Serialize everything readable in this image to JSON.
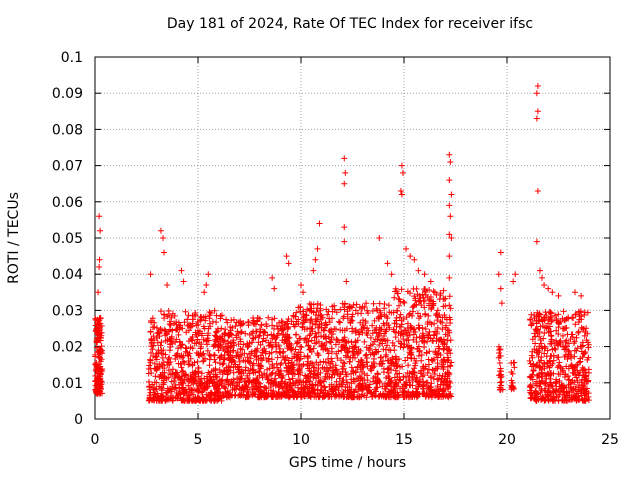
{
  "chart_data": {
    "type": "scatter",
    "title": "Day 181 of 2024, Rate Of TEC Index for receiver ifsc",
    "xlabel": "GPS time / hours",
    "ylabel": "ROTI / TECUs",
    "xlim": [
      0,
      25
    ],
    "ylim": [
      0,
      0.1
    ],
    "xticks": [
      "0",
      "5",
      "10",
      "15",
      "20",
      "25"
    ],
    "yticks": [
      "0",
      "0.01",
      "0.02",
      "0.03",
      "0.04",
      "0.05",
      "0.06",
      "0.07",
      "0.08",
      "0.09",
      "0.1"
    ],
    "grid": true,
    "marker": "+",
    "color": "#ff0000",
    "series": [
      {
        "clusters": [
          {
            "x0": 0.0,
            "x1": 0.35,
            "ylo": 0.007,
            "yhi": 0.028,
            "n": 160
          },
          {
            "x0": 2.6,
            "x1": 6.2,
            "ylo": 0.005,
            "yhi": 0.03,
            "n": 650
          },
          {
            "x0": 6.2,
            "x1": 9.5,
            "ylo": 0.006,
            "yhi": 0.028,
            "n": 550
          },
          {
            "x0": 9.5,
            "x1": 14.5,
            "ylo": 0.006,
            "yhi": 0.032,
            "n": 850
          },
          {
            "x0": 14.5,
            "x1": 17.3,
            "ylo": 0.006,
            "yhi": 0.036,
            "n": 520
          },
          {
            "x0": 19.6,
            "x1": 19.8,
            "ylo": 0.008,
            "yhi": 0.02,
            "n": 25
          },
          {
            "x0": 20.2,
            "x1": 20.4,
            "ylo": 0.008,
            "yhi": 0.016,
            "n": 15
          },
          {
            "x0": 21.1,
            "x1": 24.0,
            "ylo": 0.005,
            "yhi": 0.03,
            "n": 520
          }
        ],
        "points": [
          [
            0.2,
            0.056
          ],
          [
            0.25,
            0.052
          ],
          [
            0.22,
            0.044
          ],
          [
            0.2,
            0.042
          ],
          [
            0.15,
            0.035
          ],
          [
            2.7,
            0.04
          ],
          [
            3.2,
            0.052
          ],
          [
            3.3,
            0.05
          ],
          [
            3.35,
            0.046
          ],
          [
            3.5,
            0.037
          ],
          [
            4.2,
            0.041
          ],
          [
            4.3,
            0.038
          ],
          [
            5.4,
            0.037
          ],
          [
            5.3,
            0.035
          ],
          [
            5.5,
            0.04
          ],
          [
            8.6,
            0.039
          ],
          [
            8.7,
            0.036
          ],
          [
            9.3,
            0.045
          ],
          [
            9.4,
            0.043
          ],
          [
            10.0,
            0.037
          ],
          [
            10.1,
            0.035
          ],
          [
            10.9,
            0.054
          ],
          [
            10.8,
            0.047
          ],
          [
            10.7,
            0.044
          ],
          [
            10.6,
            0.041
          ],
          [
            12.1,
            0.072
          ],
          [
            12.15,
            0.068
          ],
          [
            12.1,
            0.065
          ],
          [
            12.1,
            0.053
          ],
          [
            12.1,
            0.049
          ],
          [
            12.2,
            0.038
          ],
          [
            13.8,
            0.05
          ],
          [
            14.2,
            0.043
          ],
          [
            14.4,
            0.04
          ],
          [
            14.9,
            0.07
          ],
          [
            14.95,
            0.068
          ],
          [
            14.85,
            0.063
          ],
          [
            14.9,
            0.062
          ],
          [
            15.1,
            0.047
          ],
          [
            15.3,
            0.045
          ],
          [
            15.5,
            0.044
          ],
          [
            15.7,
            0.041
          ],
          [
            16.0,
            0.04
          ],
          [
            16.3,
            0.038
          ],
          [
            16.5,
            0.035
          ],
          [
            17.2,
            0.073
          ],
          [
            17.25,
            0.071
          ],
          [
            17.2,
            0.066
          ],
          [
            17.3,
            0.062
          ],
          [
            17.2,
            0.059
          ],
          [
            17.25,
            0.056
          ],
          [
            17.2,
            0.051
          ],
          [
            17.3,
            0.05
          ],
          [
            17.2,
            0.045
          ],
          [
            17.2,
            0.039
          ],
          [
            19.7,
            0.046
          ],
          [
            19.6,
            0.04
          ],
          [
            19.7,
            0.036
          ],
          [
            19.75,
            0.032
          ],
          [
            20.3,
            0.038
          ],
          [
            20.4,
            0.04
          ],
          [
            21.5,
            0.092
          ],
          [
            21.45,
            0.09
          ],
          [
            21.5,
            0.085
          ],
          [
            21.45,
            0.083
          ],
          [
            21.5,
            0.063
          ],
          [
            21.45,
            0.049
          ],
          [
            21.6,
            0.041
          ],
          [
            21.7,
            0.039
          ],
          [
            21.8,
            0.037
          ],
          [
            22.0,
            0.036
          ],
          [
            22.2,
            0.035
          ],
          [
            22.5,
            0.034
          ],
          [
            23.3,
            0.035
          ],
          [
            23.6,
            0.034
          ]
        ]
      }
    ]
  }
}
